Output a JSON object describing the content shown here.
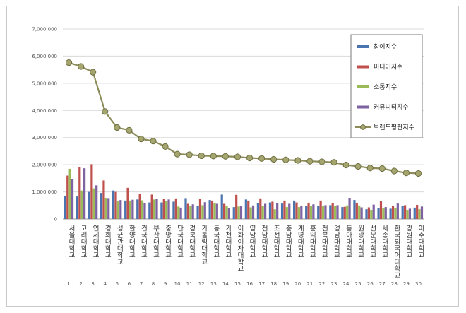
{
  "chart_data": {
    "type": "bar",
    "ylim": [
      0,
      7000000
    ],
    "y_ticks": [
      "0",
      "1,000,000",
      "2,000,000",
      "3,000,000",
      "4,000,000",
      "5,000,000",
      "6,000,000",
      "7,000,000"
    ],
    "grid": "horizontal",
    "legend_position": "top-right",
    "categories": [
      "서울대학교",
      "고려대학교",
      "연세대학교",
      "경희대학교",
      "성균관대학교",
      "한양대학교",
      "건국대학교",
      "부산대학교",
      "중앙대학교",
      "단국대학교",
      "경북대학교",
      "가톨릭대학교",
      "동국대학교",
      "가천대학교",
      "이화여자대학교",
      "영남대학교",
      "전남대학교",
      "조선대학교",
      "충남대학교",
      "계명대학교",
      "홍익대학교",
      "전북대학교",
      "경남대학교",
      "동아대학교",
      "원광대학교",
      "선문대학교",
      "세종대학교",
      "한국외국어대학교",
      "강원대학교",
      "아주대학교"
    ],
    "x_labels": [
      "1",
      "2",
      "3",
      "4",
      "5",
      "6",
      "7",
      "8",
      "9",
      "10",
      "11",
      "12",
      "13",
      "14",
      "15",
      "16",
      "17",
      "18",
      "19",
      "20",
      "21",
      "22",
      "23",
      "24",
      "25",
      "26",
      "27",
      "28",
      "29",
      "30"
    ],
    "series": [
      {
        "name": "참여지수",
        "type": "bar",
        "color": "#4a74b0",
        "values": [
          860000,
          830000,
          1000000,
          960000,
          1050000,
          680000,
          720000,
          610000,
          610000,
          640000,
          770000,
          490000,
          700000,
          900000,
          440000,
          720000,
          590000,
          610000,
          570000,
          680000,
          480000,
          490000,
          510000,
          440000,
          700000,
          360000,
          410000,
          380000,
          470000,
          420000
        ]
      },
      {
        "name": "미디어지수",
        "type": "bar",
        "color": "#c0504d",
        "values": [
          1600000,
          1920000,
          2020000,
          1420000,
          1000000,
          1150000,
          920000,
          900000,
          750000,
          760000,
          560000,
          730000,
          680000,
          560000,
          890000,
          680000,
          760000,
          640000,
          680000,
          610000,
          600000,
          680000,
          590000,
          450000,
          580000,
          430000,
          670000,
          480000,
          510000,
          520000
        ]
      },
      {
        "name": "소통지수",
        "type": "bar",
        "color": "#9bbb59",
        "values": [
          1850000,
          1050000,
          1130000,
          780000,
          650000,
          680000,
          690000,
          720000,
          660000,
          460000,
          480000,
          510000,
          580000,
          470000,
          460000,
          430000,
          480000,
          360000,
          440000,
          440000,
          490000,
          480000,
          480000,
          500000,
          500000,
          340000,
          400000,
          400000,
          340000,
          360000
        ]
      },
      {
        "name": "커뮤니티지수",
        "type": "bar",
        "color": "#7e62a1",
        "values": [
          1480000,
          1870000,
          1240000,
          770000,
          700000,
          710000,
          600000,
          740000,
          720000,
          420000,
          540000,
          620000,
          560000,
          400000,
          470000,
          500000,
          560000,
          600000,
          560000,
          470000,
          540000,
          510000,
          510000,
          780000,
          430000,
          530000,
          440000,
          570000,
          380000,
          460000
        ]
      },
      {
        "name": "브랜드평판지수",
        "type": "line",
        "color": "#8c8c5a",
        "values": [
          5760000,
          5620000,
          5410000,
          3960000,
          3370000,
          3270000,
          2950000,
          2870000,
          2670000,
          2390000,
          2370000,
          2330000,
          2320000,
          2310000,
          2290000,
          2250000,
          2230000,
          2200000,
          2180000,
          2160000,
          2130000,
          2110000,
          2090000,
          1990000,
          1940000,
          1880000,
          1860000,
          1770000,
          1700000,
          1680000
        ]
      }
    ]
  }
}
